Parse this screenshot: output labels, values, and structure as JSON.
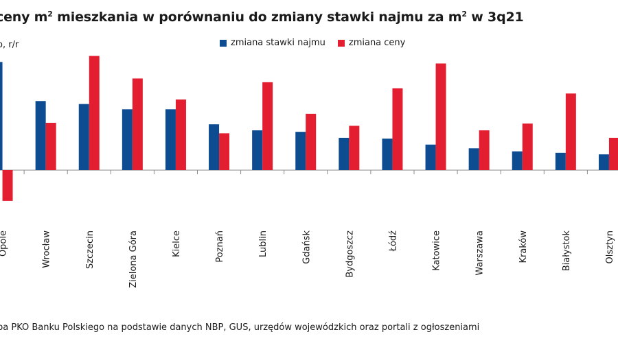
{
  "title_main": "ceny m",
  "title_sup": "2",
  "title_mid": " mieszkania w porównaniu do zmiany stawki najmu za m",
  "title_sup2": "2",
  "title_end": " w 3q21",
  "unit_label": "o, r/r",
  "source": "pa PKO Banku Polskiego na podstawie danych NBP, GUS, urzędów wojewódzkich oraz portali z ogłoszeniami",
  "colors": {
    "rent": "#0e4c92",
    "price": "#e41e31",
    "axis": "#8a8a8a"
  },
  "chart_data": {
    "type": "bar",
    "categories": [
      "Opole",
      "Wrocław",
      "Szczecin",
      "Zielona Góra",
      "Kielce",
      "Poznań",
      "Lublin",
      "Gdańsk",
      "Bydgoszcz",
      "Łódź",
      "Katowice",
      "Warszawa",
      "Kraków",
      "Białystok",
      "Olsztyn"
    ],
    "series": [
      {
        "name": "zmiana stawki najmu",
        "values": [
          14.4,
          9.2,
          8.8,
          8.1,
          8.1,
          6.1,
          5.3,
          5.1,
          4.3,
          4.2,
          3.4,
          2.9,
          2.5,
          2.3,
          2.1
        ]
      },
      {
        "name": "zmiana ceny",
        "values": [
          -4.1,
          6.3,
          15.2,
          12.2,
          9.4,
          4.9,
          11.7,
          7.5,
          5.9,
          10.9,
          14.2,
          5.3,
          6.2,
          10.2,
          4.3
        ]
      }
    ],
    "ylim": [
      -5,
      16
    ],
    "xlabel": "",
    "ylabel": "",
    "legend_position": "top"
  }
}
